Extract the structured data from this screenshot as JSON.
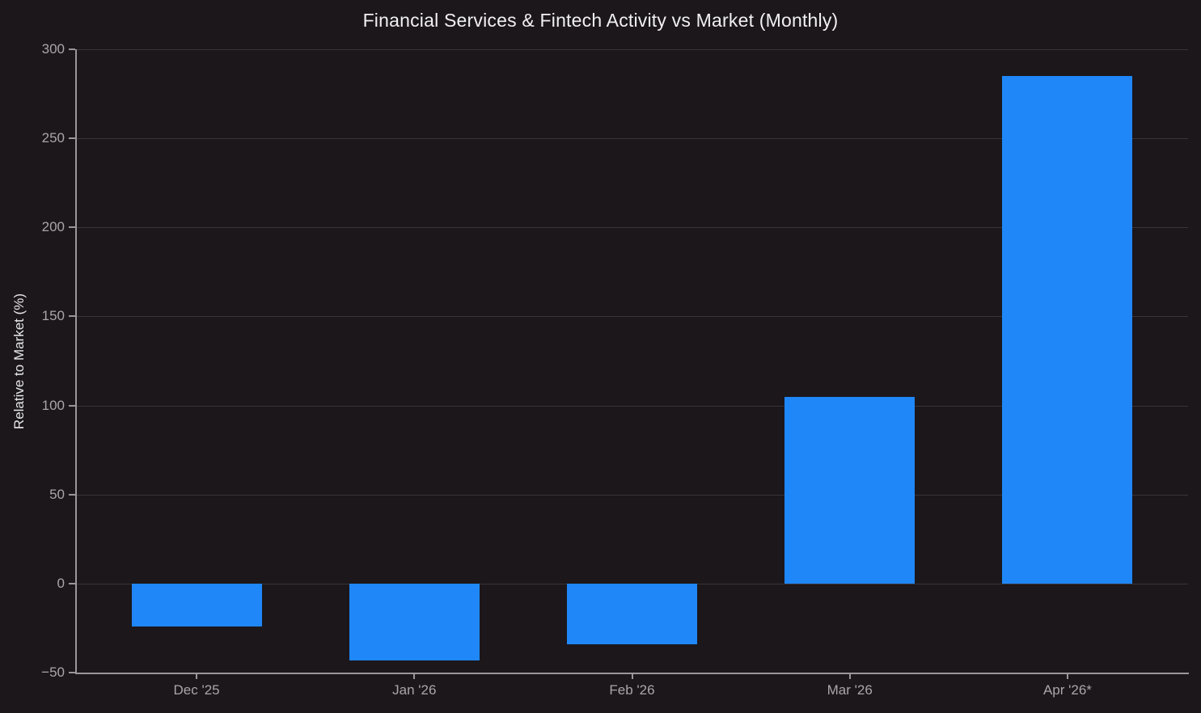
{
  "title": "Financial Services & Fintech Activity vs Market (Monthly)",
  "colors": {
    "background": "#1b171b",
    "bar": "#1f87f8",
    "grid": "#383438",
    "spine": "#9a969a",
    "tick_text": "#a9a5a9",
    "title_text": "#f2f0f2",
    "axis_label_text": "#e9e7e9"
  },
  "chart_data": {
    "type": "bar",
    "title": "Financial Services & Fintech Activity vs Market (Monthly)",
    "categories": [
      "Dec '25",
      "Jan '26",
      "Feb '26",
      "Mar '26",
      "Apr '26*"
    ],
    "values": [
      -24,
      -43,
      -34,
      105,
      285
    ],
    "xlabel": "",
    "ylabel": "Relative to Market (%)",
    "ylim": [
      -50,
      300
    ],
    "yticks": [
      300,
      250,
      200,
      150,
      100,
      50,
      0,
      -50
    ],
    "ytick_labels": [
      "300",
      "250",
      "200",
      "150",
      "100",
      "50",
      "0",
      "−50"
    ],
    "grid": true,
    "legend": false,
    "bar_color": "#1f87f8",
    "background": "#1b171b"
  }
}
